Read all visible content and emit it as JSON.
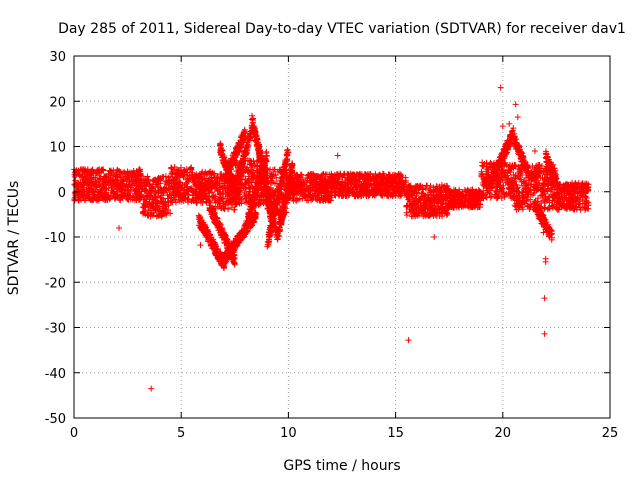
{
  "chart_data": {
    "type": "scatter",
    "title": "Day 285 of 2011, Sidereal Day-to-day VTEC variation (SDTVAR) for receiver dav1",
    "xlabel": "GPS time / hours",
    "ylabel": "SDTVAR / TECUs",
    "xlim": [
      0,
      25
    ],
    "ylim": [
      -50,
      30
    ],
    "xticks": [
      0,
      5,
      10,
      15,
      20,
      25
    ],
    "yticks": [
      -50,
      -40,
      -30,
      -20,
      -10,
      0,
      10,
      20,
      30
    ],
    "xtick_labels": [
      "0",
      "5",
      "10",
      "15",
      "20",
      "25"
    ],
    "ytick_labels": [
      "-50",
      "-40",
      "-30",
      "-20",
      "-10",
      "0",
      "10",
      "20",
      "30"
    ],
    "grid": true,
    "marker": "+",
    "color": "#ff0000",
    "bands": [
      {
        "x0": 0.0,
        "x1": 3.2,
        "center": 1.5,
        "half": 3.5
      },
      {
        "x0": 3.2,
        "x1": 4.5,
        "center": -1.0,
        "half": 4.5
      },
      {
        "x0": 4.5,
        "x1": 5.5,
        "center": 1.5,
        "half": 4.0
      },
      {
        "x0": 5.5,
        "x1": 6.5,
        "center": 1.0,
        "half": 3.5
      },
      {
        "x0": 6.5,
        "x1": 7.5,
        "center": 0.0,
        "half": 4.0
      },
      {
        "x0": 7.5,
        "x1": 9.0,
        "center": 2.0,
        "half": 5.0
      },
      {
        "x0": 9.0,
        "x1": 10.0,
        "center": 0.0,
        "half": 5.0
      },
      {
        "x0": 10.0,
        "x1": 12.0,
        "center": 1.0,
        "half": 3.0
      },
      {
        "x0": 12.0,
        "x1": 15.5,
        "center": 1.5,
        "half": 2.5
      },
      {
        "x0": 15.5,
        "x1": 17.5,
        "center": -2.0,
        "half": 3.5
      },
      {
        "x0": 17.5,
        "x1": 19.0,
        "center": -1.5,
        "half": 2.0
      },
      {
        "x0": 19.0,
        "x1": 20.5,
        "center": 2.5,
        "half": 4.0
      },
      {
        "x0": 20.5,
        "x1": 21.5,
        "center": 1.0,
        "half": 5.0
      },
      {
        "x0": 21.5,
        "x1": 22.5,
        "center": 1.0,
        "half": 5.0
      },
      {
        "x0": 22.5,
        "x1": 24.0,
        "center": -1.0,
        "half": 3.0
      }
    ],
    "tracks": [
      {
        "x0": 5.8,
        "x1": 7.0,
        "y0": -6,
        "y1": -16
      },
      {
        "x0": 6.3,
        "x1": 7.5,
        "y0": -3,
        "y1": -15
      },
      {
        "x0": 7.0,
        "x1": 8.5,
        "y0": -15,
        "y1": -5
      },
      {
        "x0": 7.2,
        "x1": 8.0,
        "y0": 5,
        "y1": 13
      },
      {
        "x0": 7.5,
        "x1": 8.3,
        "y0": 0,
        "y1": 14
      },
      {
        "x0": 8.0,
        "x1": 9.0,
        "y0": -8,
        "y1": 8
      },
      {
        "x0": 8.3,
        "x1": 9.5,
        "y0": 16,
        "y1": -10
      },
      {
        "x0": 8.6,
        "x1": 9.2,
        "y0": 10,
        "y1": -6
      },
      {
        "x0": 9.0,
        "x1": 10.0,
        "y0": -12,
        "y1": 9
      },
      {
        "x0": 9.5,
        "x1": 10.2,
        "y0": -10,
        "y1": 6
      },
      {
        "x0": 6.8,
        "x1": 7.6,
        "y0": 10,
        "y1": -2
      },
      {
        "x0": 19.5,
        "x1": 20.5,
        "y0": 3,
        "y1": 13
      },
      {
        "x0": 20.5,
        "x1": 21.2,
        "y0": 12,
        "y1": 4
      },
      {
        "x0": 21.5,
        "x1": 22.3,
        "y0": -3,
        "y1": -10
      },
      {
        "x0": 22.0,
        "x1": 22.5,
        "y0": 8,
        "y1": 2
      }
    ],
    "outliers": [
      {
        "x": 2.1,
        "y": -8
      },
      {
        "x": 3.6,
        "y": -43.5
      },
      {
        "x": 5.9,
        "y": -11.8
      },
      {
        "x": 12.3,
        "y": 8
      },
      {
        "x": 15.6,
        "y": -32.8
      },
      {
        "x": 16.8,
        "y": -10
      },
      {
        "x": 19.9,
        "y": 23
      },
      {
        "x": 20.0,
        "y": 14.5
      },
      {
        "x": 20.3,
        "y": 15
      },
      {
        "x": 20.6,
        "y": 19.3
      },
      {
        "x": 20.7,
        "y": 16.5
      },
      {
        "x": 20.2,
        "y": 11
      },
      {
        "x": 21.5,
        "y": 9
      },
      {
        "x": 21.8,
        "y": -7
      },
      {
        "x": 22.0,
        "y": -14.8
      },
      {
        "x": 22.0,
        "y": -15.5
      },
      {
        "x": 21.95,
        "y": -23.5
      },
      {
        "x": 21.95,
        "y": -31.4
      },
      {
        "x": 21.9,
        "y": -9
      }
    ]
  }
}
